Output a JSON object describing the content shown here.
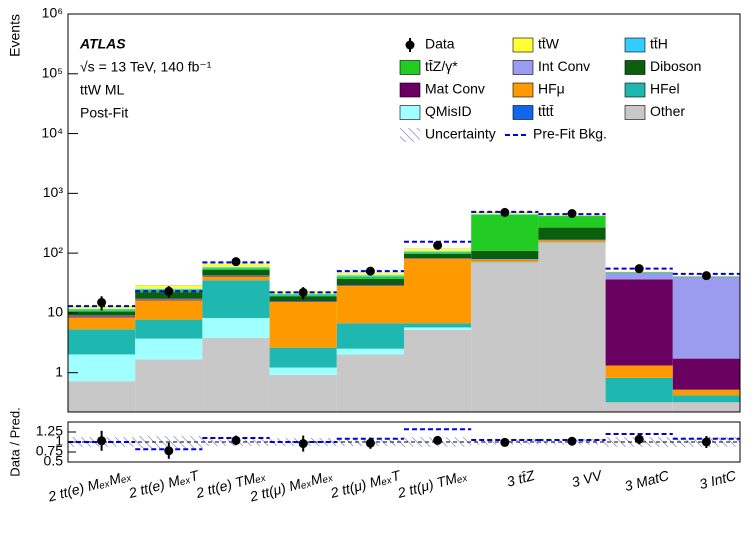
{
  "chart_data": {
    "type": "stacked_bar",
    "ylabel": "Events",
    "annotations": [
      "ATLAS",
      "√s = 13 TeV, 140 fb⁻¹",
      "ttW ML",
      "Post-Fit"
    ],
    "log_scale": true,
    "ylim": [
      0.22,
      1000000
    ],
    "yticks": [
      1,
      10,
      {
        "value": 100,
        "label": "10²"
      },
      {
        "value": 1000,
        "label": "10³"
      },
      {
        "value": 10000,
        "label": "10⁴"
      },
      {
        "value": 100000,
        "label": "10⁵"
      },
      {
        "value": 1000000,
        "label": "10⁶"
      }
    ],
    "categories": [
      "2  tt(e) MₑₓMₑₓ",
      "2  tt(e) MₑₓT",
      "2  tt(e) TMₑₓ",
      "2  tt(μ) MₑₓMₑₓ",
      "2  tt(μ) MₑₓT",
      "2  tt(μ) TMₑₓ",
      "3  tt̄Z",
      "3  VV",
      "3  MatC",
      "3  IntC"
    ],
    "series": [
      {
        "name": "Other",
        "color": "#c8c8c8",
        "values": [
          0.5,
          1.45,
          3.6,
          0.7,
          1.8,
          5,
          70,
          150,
          0.1,
          0.1
        ]
      },
      {
        "name": "QMisID",
        "color": "#a0ffff",
        "values": [
          1.3,
          2.05,
          4.4,
          0.3,
          0.5,
          0.5,
          0,
          0,
          0,
          0
        ]
      },
      {
        "name": "HFel",
        "color": "#1eb8b0",
        "values": [
          3.3,
          4,
          27,
          1.4,
          4.2,
          1,
          1,
          2,
          0.5,
          0.1
        ]
      },
      {
        "name": "HFμ",
        "color": "#ff9900",
        "values": [
          3.1,
          8.5,
          5,
          12.6,
          21.5,
          73.5,
          5,
          10,
          0.5,
          0.1
        ]
      },
      {
        "name": "Mat Conv",
        "color": "#6a0060",
        "values": [
          0.3,
          0.5,
          1,
          0.3,
          0.5,
          1,
          1,
          2,
          35,
          1.2
        ]
      },
      {
        "name": "Int Conv",
        "color": "#9b9bf0",
        "values": [
          0.3,
          0.5,
          1,
          0.3,
          0.5,
          1,
          2,
          3,
          10,
          38
        ]
      },
      {
        "name": "Diboson",
        "color": "#0b5e0b",
        "values": [
          1.5,
          5,
          10,
          3,
          8,
          15,
          30,
          100,
          0.5,
          0.5
        ]
      },
      {
        "name": "tt̄Z/γ*",
        "color": "#22cc22",
        "values": [
          0.5,
          1.5,
          3,
          1,
          3,
          5,
          330,
          150,
          1,
          0.5
        ]
      },
      {
        "name": "tt̄H",
        "color": "#33ccff",
        "values": [
          0.6,
          1.5,
          3,
          1,
          2.5,
          5,
          10,
          5,
          0.5,
          0.3
        ]
      },
      {
        "name": "tt̄W",
        "color": "#ffff33",
        "values": [
          1.2,
          3.5,
          8,
          2,
          4,
          12,
          20,
          10,
          1,
          0.5
        ]
      },
      {
        "name": "tt̄tt̄",
        "color": "#1166ee",
        "values": [
          0.1,
          0.2,
          0.3,
          0.1,
          0.2,
          0.5,
          5,
          1,
          0,
          0
        ]
      }
    ],
    "data": {
      "name": "Data",
      "color": "#000000",
      "values": [
        15,
        23,
        72,
        22,
        50,
        135,
        480,
        460,
        55,
        42
      ],
      "errors": [
        4,
        5,
        9,
        5,
        7,
        12,
        22,
        21,
        7,
        6.5
      ]
    },
    "prefit": {
      "name": "Pre-Fit Bkg.",
      "color": "#0000dd",
      "values": [
        13,
        23,
        70,
        22,
        50,
        155,
        490,
        450,
        55,
        45
      ]
    },
    "uncertainty": {
      "name": "Uncertainty",
      "color": "#6a6acd"
    },
    "ratio": {
      "ylabel": "Data / Pred.",
      "ylim": [
        0.5,
        1.5
      ],
      "yticks": [
        0.5,
        0.75,
        1,
        1.25
      ],
      "values": [
        1.03,
        0.78,
        1.04,
        0.96,
        0.97,
        1.04,
        0.99,
        1.02,
        1.07,
        1.0
      ],
      "errors": [
        0.25,
        0.2,
        0.12,
        0.2,
        0.14,
        0.1,
        0.05,
        0.05,
        0.13,
        0.15
      ],
      "prefit": [
        1.0,
        0.82,
        1.1,
        1.0,
        1.08,
        1.32,
        1.05,
        1.05,
        1.2,
        1.08
      ],
      "uncertainty": [
        0.12,
        0.15,
        0.1,
        0.1,
        0.1,
        0.12,
        0.07,
        0.07,
        0.12,
        0.12
      ]
    }
  }
}
